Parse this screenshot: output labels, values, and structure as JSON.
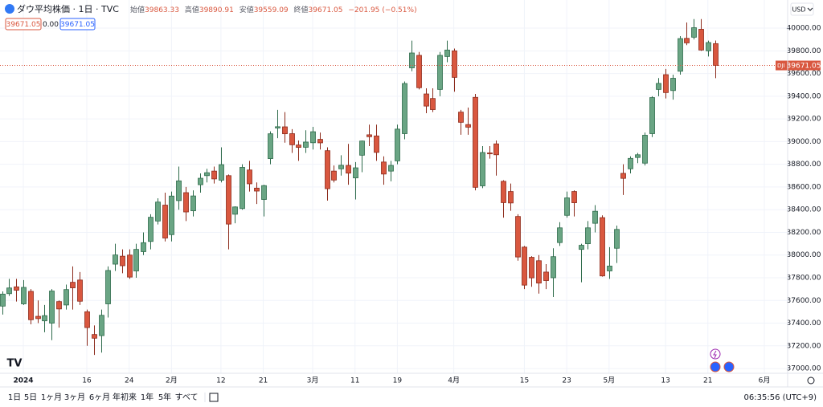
{
  "header": {
    "symbol_title": "ダウ平均株価 · 1日 · TVC",
    "open_label": "始値",
    "high_label": "高値",
    "low_label": "安値",
    "close_label": "終値",
    "change": "−201.95",
    "change_pct": "(−0.51%)",
    "spread": "0.00",
    "currency": "USD",
    "symbol": "DJI"
  },
  "chart_data": {
    "type": "candlestick",
    "open": [
      37550,
      37660,
      37720,
      37570,
      37680,
      37460,
      37420,
      37400,
      37590,
      37560,
      37760,
      37780,
      37500,
      37300,
      37290,
      37570,
      37920,
      37990,
      38000,
      37860,
      38030,
      38120,
      38300,
      38440,
      38180,
      38480,
      38550,
      38390,
      38620,
      38700,
      38740,
      38660,
      38700,
      38360,
      38410,
      38750,
      38590,
      38490,
      38850,
      39120,
      39130,
      39070,
      38970,
      38950,
      38990,
      39020,
      38920,
      38740,
      38760,
      38790,
      38680,
      38880,
      39060,
      39050,
      38820,
      38740,
      38830,
      39070,
      39650,
      39760,
      39420,
      39380,
      39460,
      39750,
      39800,
      39260,
      39150,
      39390,
      38610,
      38900,
      38980,
      38650,
      38560,
      38340,
      38070,
      37980,
      37950,
      37850,
      37800,
      38110,
      38350,
      38560,
      38050,
      38100,
      38280,
      38330,
      37860,
      38060,
      38720,
      38760,
      38860,
      38810,
      39070,
      39460,
      39590,
      39450,
      39620,
      39910,
      39920,
      39990,
      39800,
      39863.33
    ],
    "high": [
      37680,
      37790,
      37790,
      37780,
      37700,
      37600,
      37560,
      37700,
      37600,
      37740,
      37900,
      37850,
      37520,
      37380,
      37520,
      37900,
      38100,
      38050,
      38050,
      38100,
      38200,
      38360,
      38500,
      38550,
      38560,
      38780,
      38600,
      38570,
      38720,
      38760,
      38780,
      38950,
      38710,
      38430,
      38800,
      38830,
      38640,
      38620,
      39090,
      39280,
      39260,
      39110,
      39010,
      39100,
      39130,
      39080,
      38950,
      38790,
      38880,
      38980,
      38820,
      39010,
      39150,
      39150,
      38870,
      38830,
      39150,
      39530,
      39890,
      39790,
      39470,
      39470,
      39790,
      39890,
      39820,
      39280,
      39300,
      39420,
      38960,
      38960,
      39010,
      38660,
      38630,
      38360,
      38080,
      37990,
      38000,
      37920,
      38060,
      38290,
      38560,
      38570,
      38100,
      38300,
      38440,
      38350,
      38070,
      38260,
      38800,
      38870,
      38900,
      39080,
      39400,
      39560,
      39640,
      39590,
      39930,
      40050,
      40080,
      40080,
      39890,
      39890.91
    ],
    "low": [
      37475,
      37640,
      37590,
      37560,
      37390,
      37400,
      37320,
      37250,
      37360,
      37520,
      37520,
      37560,
      37200,
      37120,
      37140,
      37450,
      37860,
      37840,
      37790,
      37800,
      38000,
      38050,
      38270,
      38120,
      38120,
      38400,
      38300,
      38340,
      38550,
      38640,
      38630,
      38640,
      38050,
      38280,
      38400,
      38560,
      38450,
      38340,
      38800,
      39030,
      38990,
      38900,
      38830,
      38900,
      38930,
      38930,
      38480,
      38640,
      38700,
      38620,
      38490,
      38730,
      38960,
      38830,
      38620,
      38650,
      38800,
      39020,
      39620,
      39460,
      39250,
      39260,
      39400,
      39700,
      39440,
      39060,
      39060,
      38570,
      38590,
      38850,
      38700,
      38330,
      38390,
      37950,
      37700,
      37720,
      37660,
      37700,
      37630,
      38080,
      38330,
      38340,
      37760,
      38050,
      38200,
      37810,
      37790,
      37930,
      38530,
      38720,
      38810,
      38790,
      39040,
      39400,
      39380,
      39370,
      39590,
      39850,
      39900,
      39800,
      39750,
      39559.09
    ],
    "close": [
      37656,
      37710,
      37690,
      37715,
      37430,
      37440,
      37466,
      37683,
      37525,
      37696,
      37711,
      37593,
      37361,
      37267,
      37469,
      37864,
      38001,
      37906,
      37806,
      38050,
      38109,
      38333,
      38467,
      38150,
      38520,
      38654,
      38380,
      38521,
      38677,
      38726,
      38671,
      38797,
      38273,
      38424,
      38773,
      38628,
      38564,
      38612,
      39069,
      39131,
      39069,
      38972,
      38949,
      38996,
      39087,
      38989,
      38585,
      38661,
      38791,
      38722,
      38769,
      39005,
      39043,
      38905,
      38714,
      38790,
      39110,
      39512,
      39781,
      39475,
      39313,
      39282,
      39760,
      39807,
      39566,
      39170,
      39127,
      38597,
      38904,
      38892,
      38884,
      38462,
      38459,
      37983,
      37735,
      37799,
      37753,
      37775,
      37986,
      38240,
      38504,
      38461,
      38086,
      38240,
      38386,
      37816,
      37903,
      38226,
      38676,
      38852,
      38884,
      39056,
      39388,
      39513,
      39432,
      39558,
      39908,
      39870,
      40004,
      39807,
      39873,
      39671.05
    ],
    "up_color": "#6aa584",
    "down_color": "#d9573f",
    "ylim": [
      36958,
      40248
    ],
    "yticks": [
      {
        "value": 40000,
        "label": "40000.00"
      },
      {
        "value": 39800,
        "label": "39800.00"
      },
      {
        "value": 39600,
        "label": "39600.00"
      },
      {
        "value": 39400,
        "label": "39400.00"
      },
      {
        "value": 39200,
        "label": "39200.00"
      },
      {
        "value": 39000,
        "label": "39000.00"
      },
      {
        "value": 38800,
        "label": "38800.00"
      },
      {
        "value": 38600,
        "label": "38600.00"
      },
      {
        "value": 38400,
        "label": "38400.00"
      },
      {
        "value": 38200,
        "label": "38200.00"
      },
      {
        "value": 38000,
        "label": "38000.00"
      },
      {
        "value": 37800,
        "label": "37800.00"
      },
      {
        "value": 37600,
        "label": "37600.00"
      },
      {
        "value": 37400,
        "label": "37400.00"
      },
      {
        "value": 37200,
        "label": "37200.00"
      },
      {
        "value": 37000,
        "label": "37000.00"
      }
    ],
    "xlim": [
      -0.3,
      111.3
    ],
    "xticks": [
      {
        "value": 3,
        "label": "2024"
      },
      {
        "value": 12,
        "label": "16"
      },
      {
        "value": 18,
        "label": "24"
      },
      {
        "value": 24,
        "label": "2月"
      },
      {
        "value": 31,
        "label": "12"
      },
      {
        "value": 37,
        "label": "21"
      },
      {
        "value": 44,
        "label": "3月"
      },
      {
        "value": 50,
        "label": "11"
      },
      {
        "value": 56,
        "label": "19"
      },
      {
        "value": 64,
        "label": "4月"
      },
      {
        "value": 74,
        "label": "15"
      },
      {
        "value": 80,
        "label": "23"
      },
      {
        "value": 86,
        "label": "5月"
      },
      {
        "value": 94,
        "label": "13"
      },
      {
        "value": 100,
        "label": "21"
      },
      {
        "value": 108,
        "label": "6月"
      }
    ],
    "grid": true
  },
  "toolbar": {
    "ranges": [
      "1日",
      "5日",
      "1ヶ月",
      "3ヶ月",
      "6ヶ月",
      "年初来",
      "1年",
      "5年",
      "すべて"
    ],
    "time": "06:35:56 (UTC+9)"
  }
}
